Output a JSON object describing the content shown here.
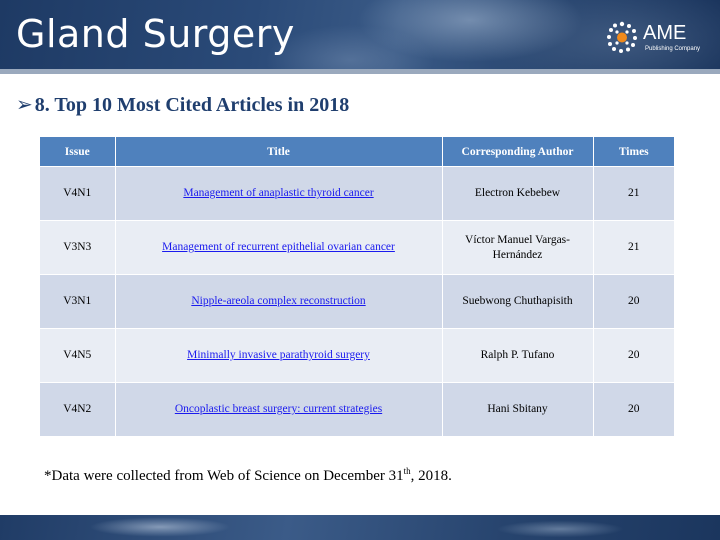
{
  "banner": {
    "title": "Gland Surgery",
    "logo_name": "AME",
    "logo_subtitle": "Publishing Company"
  },
  "heading": {
    "marker": "➢",
    "text": "8. Top 10 Most Cited Articles in 2018"
  },
  "table": {
    "headers": [
      "Issue",
      "Title",
      "Corresponding Author",
      "Times"
    ],
    "rows": [
      {
        "issue": "V4N1",
        "title": "Management of anaplastic thyroid cancer",
        "author": "Electron Kebebew",
        "times": "21"
      },
      {
        "issue": "V3N3",
        "title": "Management of recurrent epithelial ovarian cancer",
        "author": "Víctor Manuel Vargas-Hernández",
        "times": "21"
      },
      {
        "issue": "V3N1",
        "title": "Nipple-areola complex reconstruction",
        "author": "Suebwong Chuthapisith",
        "times": "20"
      },
      {
        "issue": "V4N5",
        "title": "Minimally invasive parathyroid surgery",
        "author": "Ralph P. Tufano",
        "times": "20"
      },
      {
        "issue": "V4N2",
        "title": "Oncoplastic breast surgery: current strategies",
        "author": "Hani Sbitany",
        "times": "20"
      }
    ]
  },
  "footnote": {
    "before": "*Data were collected from Web of Science on December 31",
    "sup": "th",
    "after": ", 2018."
  },
  "colors": {
    "header_fill": "#4f81bd",
    "row_dark": "#d0d8e8",
    "row_light": "#e9edf4",
    "link": "#1a1aee",
    "heading": "#1f3e6e"
  }
}
